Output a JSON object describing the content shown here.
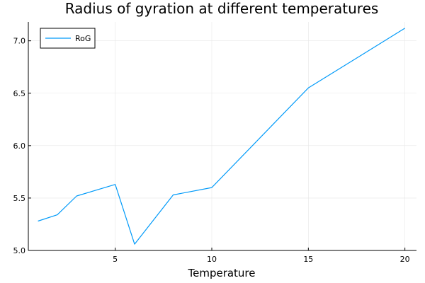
{
  "chart_data": {
    "type": "line",
    "title": "Radius of gyration at different temperatures",
    "xlabel": "Temperature",
    "ylabel": "",
    "xlim": [
      0.5,
      20.6
    ],
    "ylim": [
      5.0,
      7.18
    ],
    "xticks": [
      5,
      10,
      15,
      20
    ],
    "yticks": [
      5.0,
      5.5,
      6.0,
      6.5,
      7.0
    ],
    "xtick_labels": [
      "5",
      "10",
      "15",
      "20"
    ],
    "ytick_labels": [
      "5.0",
      "5.5",
      "6.0",
      "6.5",
      "7.0"
    ],
    "grid": true,
    "legend": "top-left",
    "series": [
      {
        "name": "RoG",
        "color": "#009af9",
        "x": [
          1,
          2,
          3,
          5,
          6,
          8,
          10,
          15,
          20
        ],
        "y": [
          5.28,
          5.34,
          5.52,
          5.63,
          5.06,
          5.53,
          5.6,
          6.55,
          7.12
        ]
      }
    ]
  }
}
